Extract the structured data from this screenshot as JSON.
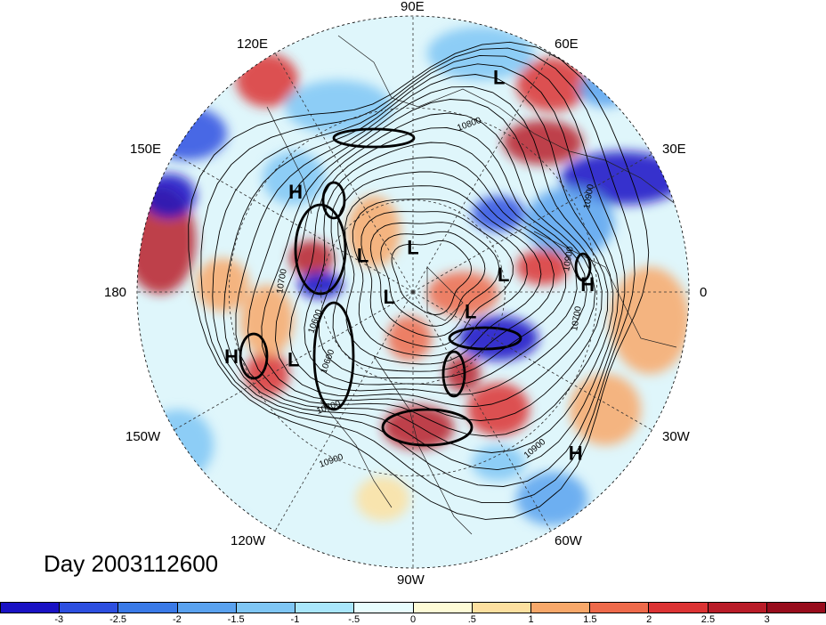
{
  "title": "Day 2003112600",
  "longitude_labels": {
    "top": "90E",
    "upper_left_1": "120E",
    "upper_right_1": "60E",
    "upper_left_2": "150E",
    "upper_right_2": "30E",
    "left": "180",
    "right": "0",
    "lower_left_2": "150W",
    "lower_right_2": "30W",
    "lower_left_1": "120W",
    "lower_right_1": "60W",
    "bottom": "90W"
  },
  "pressure_systems": [
    {
      "label": "L",
      "lon": 68,
      "lat": 15
    },
    {
      "label": "H",
      "lon": 140,
      "lat": 40
    },
    {
      "label": "L",
      "lon": 145,
      "lat": 70
    },
    {
      "label": "L",
      "lon": 90,
      "lat": 76
    },
    {
      "label": "L",
      "lon": 195,
      "lat": 82
    },
    {
      "label": "L",
      "lon": -20,
      "lat": 70
    },
    {
      "label": "L",
      "lon": 10,
      "lat": 60
    },
    {
      "label": "H",
      "lon": 2,
      "lat": 33
    },
    {
      "label": "H",
      "lon": -160,
      "lat": 27
    },
    {
      "label": "L",
      "lon": -150,
      "lat": 45
    },
    {
      "label": "H",
      "lon": -45,
      "lat": 15
    }
  ],
  "contour_labels": [
    "10800",
    "10900",
    "10900",
    "10700",
    "10600",
    "10700",
    "10900",
    "10600",
    "10700",
    "10900"
  ],
  "colorbar": {
    "ticks": [
      "-3",
      "-2.5",
      "-2",
      "-1.5",
      "-1",
      "-.5",
      "0",
      ".5",
      "1",
      "1.5",
      "2",
      "2.5",
      "3"
    ],
    "colors": [
      "#1a12c4",
      "#2d4fe0",
      "#3a7ae8",
      "#5aa2ef",
      "#7fc6f4",
      "#a9e6fb",
      "#e8fdfe",
      "#fefbd6",
      "#fde0a0",
      "#f8a86a",
      "#ee6a4b",
      "#dc3334",
      "#b91c28",
      "#980c1c"
    ]
  }
}
